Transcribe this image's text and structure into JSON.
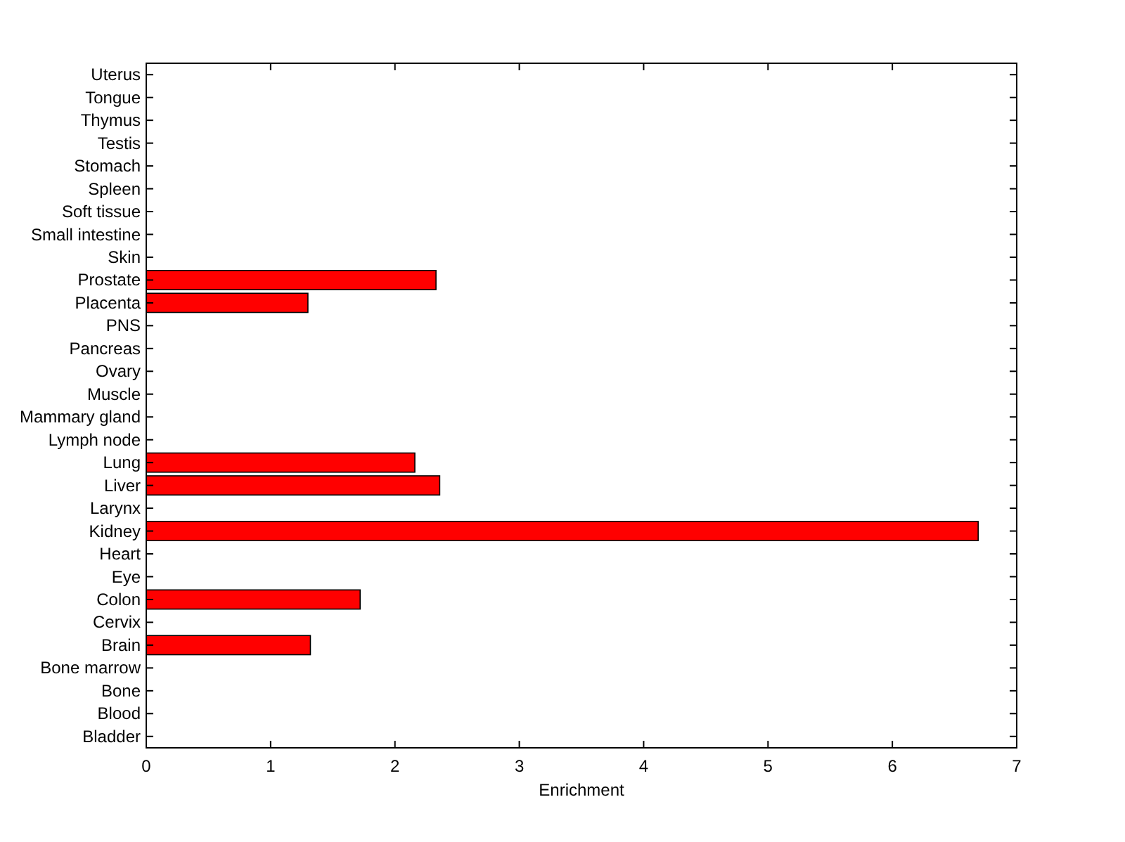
{
  "chart_data": {
    "type": "bar",
    "orientation": "horizontal",
    "xlabel": "Enrichment",
    "categories": [
      "Uterus",
      "Tongue",
      "Thymus",
      "Testis",
      "Stomach",
      "Spleen",
      "Soft tissue",
      "Small intestine",
      "Skin",
      "Prostate",
      "Placenta",
      "PNS",
      "Pancreas",
      "Ovary",
      "Muscle",
      "Mammary gland",
      "Lymph node",
      "Lung",
      "Liver",
      "Larynx",
      "Kidney",
      "Heart",
      "Eye",
      "Colon",
      "Cervix",
      "Brain",
      "Bone marrow",
      "Bone",
      "Blood",
      "Bladder"
    ],
    "values": [
      0,
      0,
      0,
      0,
      0,
      0,
      0,
      0,
      0,
      2.33,
      1.3,
      0,
      0,
      0,
      0,
      0,
      0,
      2.16,
      2.36,
      0,
      6.69,
      0,
      0,
      1.72,
      0,
      1.32,
      0,
      0,
      0,
      0
    ],
    "color": "#ff0000",
    "xlim": [
      0,
      7
    ],
    "xticks": [
      0,
      1,
      2,
      3,
      4,
      5,
      6,
      7
    ],
    "grid": false
  }
}
